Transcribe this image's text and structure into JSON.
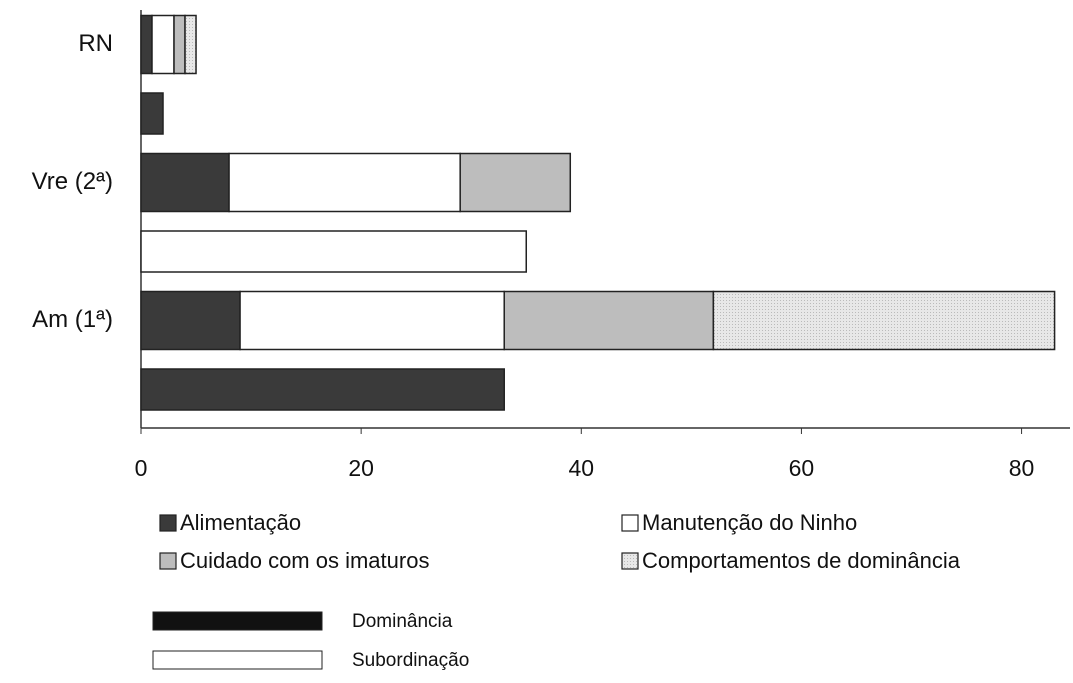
{
  "chart_data": {
    "type": "stacked_barh",
    "categories": [
      "RN",
      null,
      "Vre (2ª)",
      null,
      "Am (1ª)",
      null
    ],
    "series": [
      {
        "name": "Alimentação",
        "color": "#3a3a3a",
        "values": [
          1,
          2,
          8,
          null,
          9,
          33
        ]
      },
      {
        "name": "Manutenção do Ninho",
        "color": "#ffffff",
        "values": [
          2,
          null,
          21,
          35,
          24,
          null
        ]
      },
      {
        "name": "Cuidado com os imaturos",
        "color": "#bdbdbd",
        "values": [
          1,
          null,
          10,
          null,
          19,
          null
        ]
      },
      {
        "name": "Comportamentos de dominância",
        "color": "#e8e8e8",
        "values": [
          1,
          null,
          null,
          null,
          31,
          null
        ]
      }
    ],
    "xlim": [
      0,
      84.4
    ],
    "xticks": [
      0,
      20,
      40,
      60,
      80
    ],
    "secondary_legend": [
      {
        "label": "Dominância",
        "color": "#111111"
      },
      {
        "label": "Subordinação",
        "color": "#ffffff"
      }
    ]
  }
}
